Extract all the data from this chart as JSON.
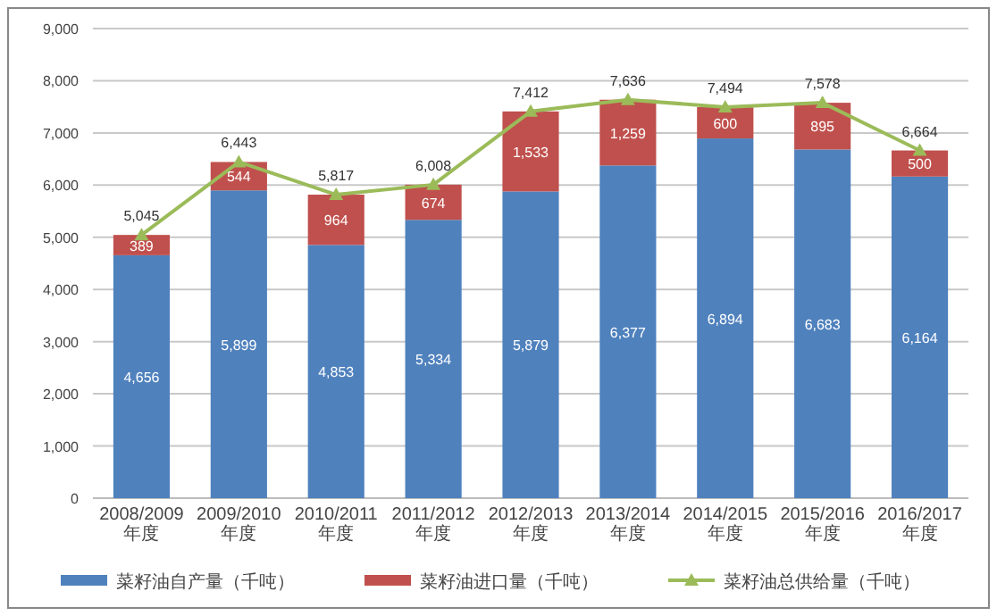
{
  "chart_data": {
    "type": "bar",
    "stacked": true,
    "categories": [
      "2008/2009年度",
      "2009/2010年度",
      "2010/2011年度",
      "2011/2012年度",
      "2012/2013年度",
      "2013/2014年度",
      "2014/2015年度",
      "2015/2016年度",
      "2016/2017年度"
    ],
    "series": [
      {
        "name": "菜籽油自产量（千吨）",
        "color": "#4f81bd",
        "values": [
          4656,
          5899,
          4853,
          5334,
          5879,
          6377,
          6894,
          6683,
          6164
        ],
        "value_labels": [
          "4,656",
          "5,899",
          "4,853",
          "5,334",
          "5,879",
          "6,377",
          "6,894",
          "6,683",
          "6,164"
        ]
      },
      {
        "name": "菜籽油进口量（千吨）",
        "color": "#c0504d",
        "values": [
          389,
          544,
          964,
          674,
          1533,
          1259,
          600,
          895,
          500
        ],
        "value_labels": [
          "389",
          "544",
          "964",
          "674",
          "1,533",
          "1,259",
          "600",
          "895",
          "500"
        ]
      },
      {
        "name": "菜籽油总供给量（千吨）",
        "type": "line",
        "color": "#9bbb59",
        "values": [
          5045,
          6443,
          5817,
          6008,
          7412,
          7636,
          7494,
          7578,
          6664
        ],
        "value_labels": [
          "5,045",
          "6,443",
          "5,817",
          "6,008",
          "7,412",
          "7,636",
          "7,494",
          "7,578",
          "6,664"
        ]
      }
    ],
    "ylim": [
      0,
      9000
    ],
    "yticks": [
      0,
      {
        "value": 1000,
        "label": "1,000"
      },
      {
        "value": 2000,
        "label": "2,000"
      },
      {
        "value": 3000,
        "label": "3,000"
      },
      {
        "value": 4000,
        "label": "4,000"
      },
      {
        "value": 5000,
        "label": "5,000"
      },
      {
        "value": 6000,
        "label": "6,000"
      },
      {
        "value": 7000,
        "label": "7,000"
      },
      {
        "value": 8000,
        "label": "8,000"
      },
      {
        "value": 9000,
        "label": "9,000"
      }
    ],
    "grid": "y",
    "legend": "bottom",
    "marker": "triangle"
  }
}
